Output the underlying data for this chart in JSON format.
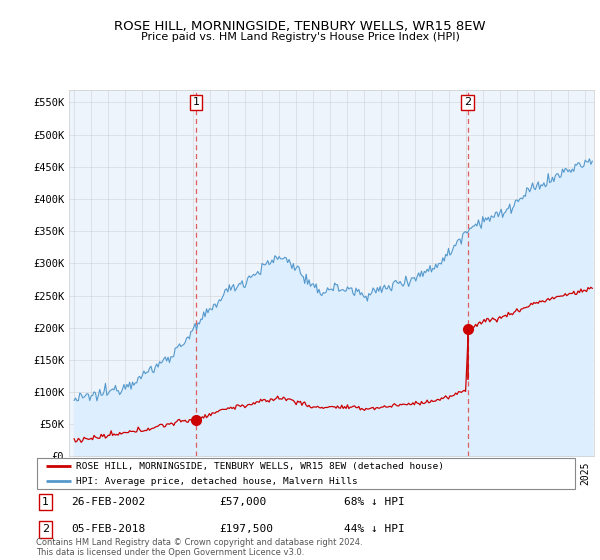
{
  "title": "ROSE HILL, MORNINGSIDE, TENBURY WELLS, WR15 8EW",
  "subtitle": "Price paid vs. HM Land Registry's House Price Index (HPI)",
  "ylim": [
    0,
    570000
  ],
  "yticks": [
    0,
    50000,
    100000,
    150000,
    200000,
    250000,
    300000,
    350000,
    400000,
    450000,
    500000,
    550000
  ],
  "ytick_labels": [
    "£0",
    "£50K",
    "£100K",
    "£150K",
    "£200K",
    "£250K",
    "£300K",
    "£350K",
    "£400K",
    "£450K",
    "£500K",
    "£550K"
  ],
  "xmin": 1994.7,
  "xmax": 2025.5,
  "sale1": {
    "date_num": 2002.15,
    "price": 57000,
    "label": "1",
    "date_str": "26-FEB-2002",
    "price_str": "£57,000",
    "pct_str": "68% ↓ HPI"
  },
  "sale2": {
    "date_num": 2018.09,
    "price": 197500,
    "label": "2",
    "date_str": "05-FEB-2018",
    "price_str": "£197,500",
    "pct_str": "44% ↓ HPI"
  },
  "hpi_color": "#5599cc",
  "hpi_fill_color": "#ddeeff",
  "price_color": "#cc0000",
  "sale_marker_color": "#cc0000",
  "dashed_color": "#dd4444",
  "legend_label_red": "ROSE HILL, MORNINGSIDE, TENBURY WELLS, WR15 8EW (detached house)",
  "legend_label_blue": "HPI: Average price, detached house, Malvern Hills",
  "footnote": "Contains HM Land Registry data © Crown copyright and database right 2024.\nThis data is licensed under the Open Government Licence v3.0.",
  "background_color": "#ffffff",
  "chart_bg_color": "#eef4fb",
  "grid_color": "#cccccc"
}
